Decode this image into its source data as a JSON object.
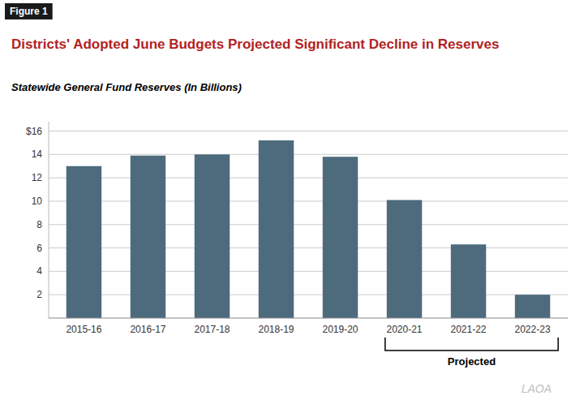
{
  "chart_data": {
    "type": "bar",
    "title": "Districts' Adopted June Budgets Projected Significant Decline in Reserves",
    "subtitle": "Statewide General Fund Reserves (In Billions)",
    "categories": [
      "2015-16",
      "2016-17",
      "2017-18",
      "2018-19",
      "2019-20",
      "2020-21",
      "2021-22",
      "2022-23"
    ],
    "values": [
      13.0,
      13.9,
      14.0,
      15.2,
      13.8,
      10.1,
      6.3,
      2.0
    ],
    "color": "#4d6b7d",
    "ylim": [
      0,
      16.8
    ],
    "yticks": [
      2,
      4,
      6,
      8,
      10,
      12,
      14,
      {
        "value": 16,
        "label": "$16"
      }
    ],
    "grid": true,
    "annotations": [
      {
        "text": "Figure 1"
      },
      {
        "text": "Projected",
        "from": "2020-21",
        "to": "2022-23"
      },
      {
        "text": "LAOA"
      }
    ]
  }
}
